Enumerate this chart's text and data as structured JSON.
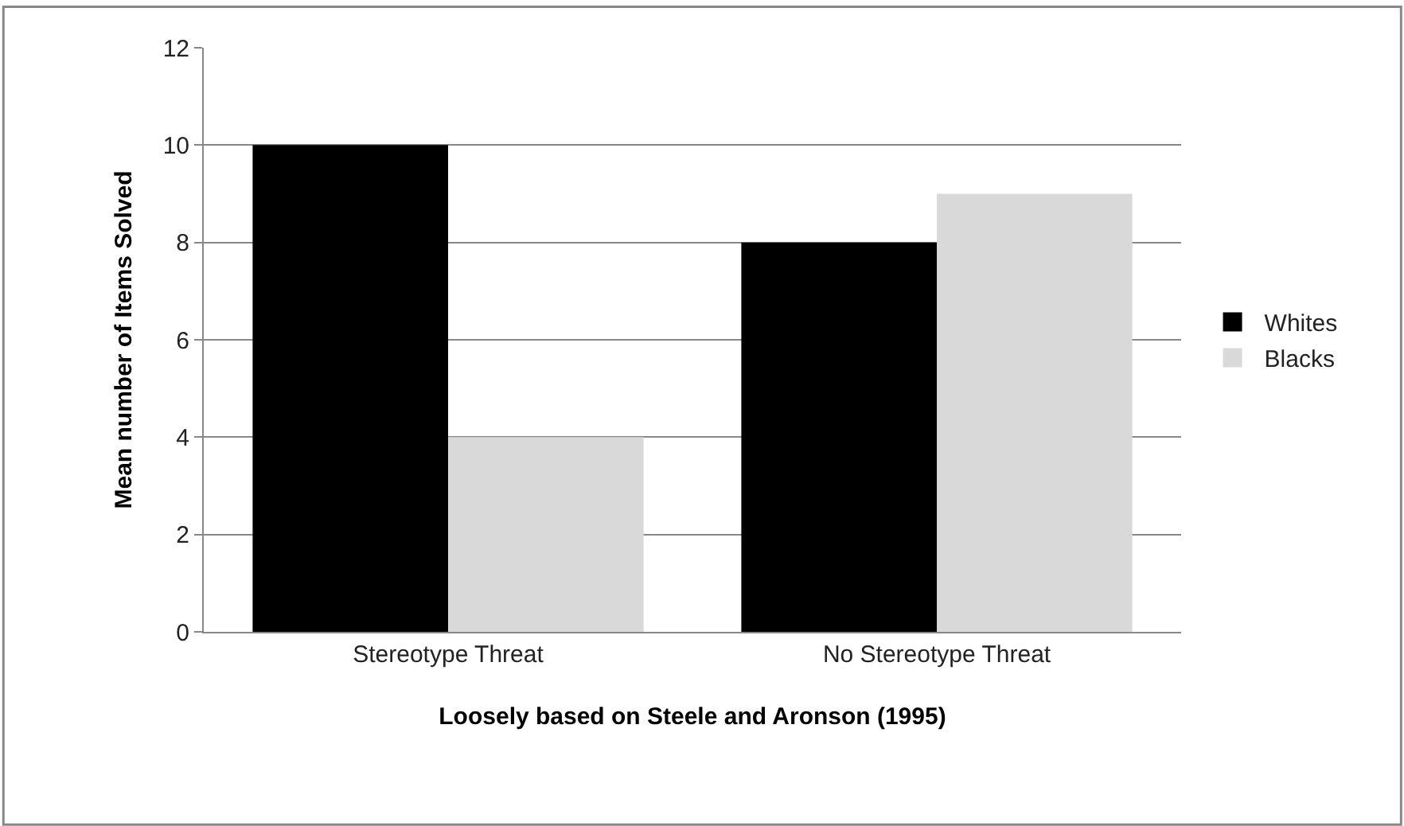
{
  "chart_data": {
    "type": "bar",
    "xlabel": "Loosely based on Steele and Aronson (1995)",
    "ylabel": "Mean number of Items Solved",
    "categories": [
      "Stereotype Threat",
      "No Stereotype Threat"
    ],
    "series": [
      {
        "name": "Whites",
        "color": "#000000",
        "values": [
          10,
          8
        ]
      },
      {
        "name": "Blacks",
        "color": "#d9d9d9",
        "values": [
          4,
          9
        ]
      }
    ],
    "ylim": [
      0,
      12
    ],
    "yticks": [
      0,
      2,
      4,
      6,
      8,
      10,
      12
    ],
    "grid": "y",
    "legend": "right"
  }
}
